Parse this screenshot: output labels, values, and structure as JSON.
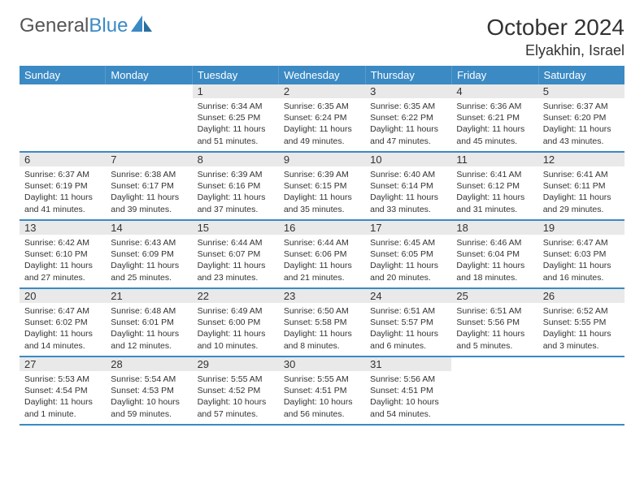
{
  "logo": {
    "text_gray": "General",
    "text_blue": "Blue"
  },
  "title": "October 2024",
  "location": "Elyakhin, Israel",
  "colors": {
    "header_bg": "#3b8ac4",
    "header_text": "#ffffff",
    "daynum_bg": "#e9e9e9",
    "week_border": "#3b8ac4",
    "text": "#333333",
    "background": "#ffffff"
  },
  "weekdays": [
    "Sunday",
    "Monday",
    "Tuesday",
    "Wednesday",
    "Thursday",
    "Friday",
    "Saturday"
  ],
  "weeks": [
    [
      {
        "n": "",
        "sunrise": "",
        "sunset": "",
        "daylight": ""
      },
      {
        "n": "",
        "sunrise": "",
        "sunset": "",
        "daylight": ""
      },
      {
        "n": "1",
        "sunrise": "Sunrise: 6:34 AM",
        "sunset": "Sunset: 6:25 PM",
        "daylight": "Daylight: 11 hours and 51 minutes."
      },
      {
        "n": "2",
        "sunrise": "Sunrise: 6:35 AM",
        "sunset": "Sunset: 6:24 PM",
        "daylight": "Daylight: 11 hours and 49 minutes."
      },
      {
        "n": "3",
        "sunrise": "Sunrise: 6:35 AM",
        "sunset": "Sunset: 6:22 PM",
        "daylight": "Daylight: 11 hours and 47 minutes."
      },
      {
        "n": "4",
        "sunrise": "Sunrise: 6:36 AM",
        "sunset": "Sunset: 6:21 PM",
        "daylight": "Daylight: 11 hours and 45 minutes."
      },
      {
        "n": "5",
        "sunrise": "Sunrise: 6:37 AM",
        "sunset": "Sunset: 6:20 PM",
        "daylight": "Daylight: 11 hours and 43 minutes."
      }
    ],
    [
      {
        "n": "6",
        "sunrise": "Sunrise: 6:37 AM",
        "sunset": "Sunset: 6:19 PM",
        "daylight": "Daylight: 11 hours and 41 minutes."
      },
      {
        "n": "7",
        "sunrise": "Sunrise: 6:38 AM",
        "sunset": "Sunset: 6:17 PM",
        "daylight": "Daylight: 11 hours and 39 minutes."
      },
      {
        "n": "8",
        "sunrise": "Sunrise: 6:39 AM",
        "sunset": "Sunset: 6:16 PM",
        "daylight": "Daylight: 11 hours and 37 minutes."
      },
      {
        "n": "9",
        "sunrise": "Sunrise: 6:39 AM",
        "sunset": "Sunset: 6:15 PM",
        "daylight": "Daylight: 11 hours and 35 minutes."
      },
      {
        "n": "10",
        "sunrise": "Sunrise: 6:40 AM",
        "sunset": "Sunset: 6:14 PM",
        "daylight": "Daylight: 11 hours and 33 minutes."
      },
      {
        "n": "11",
        "sunrise": "Sunrise: 6:41 AM",
        "sunset": "Sunset: 6:12 PM",
        "daylight": "Daylight: 11 hours and 31 minutes."
      },
      {
        "n": "12",
        "sunrise": "Sunrise: 6:41 AM",
        "sunset": "Sunset: 6:11 PM",
        "daylight": "Daylight: 11 hours and 29 minutes."
      }
    ],
    [
      {
        "n": "13",
        "sunrise": "Sunrise: 6:42 AM",
        "sunset": "Sunset: 6:10 PM",
        "daylight": "Daylight: 11 hours and 27 minutes."
      },
      {
        "n": "14",
        "sunrise": "Sunrise: 6:43 AM",
        "sunset": "Sunset: 6:09 PM",
        "daylight": "Daylight: 11 hours and 25 minutes."
      },
      {
        "n": "15",
        "sunrise": "Sunrise: 6:44 AM",
        "sunset": "Sunset: 6:07 PM",
        "daylight": "Daylight: 11 hours and 23 minutes."
      },
      {
        "n": "16",
        "sunrise": "Sunrise: 6:44 AM",
        "sunset": "Sunset: 6:06 PM",
        "daylight": "Daylight: 11 hours and 21 minutes."
      },
      {
        "n": "17",
        "sunrise": "Sunrise: 6:45 AM",
        "sunset": "Sunset: 6:05 PM",
        "daylight": "Daylight: 11 hours and 20 minutes."
      },
      {
        "n": "18",
        "sunrise": "Sunrise: 6:46 AM",
        "sunset": "Sunset: 6:04 PM",
        "daylight": "Daylight: 11 hours and 18 minutes."
      },
      {
        "n": "19",
        "sunrise": "Sunrise: 6:47 AM",
        "sunset": "Sunset: 6:03 PM",
        "daylight": "Daylight: 11 hours and 16 minutes."
      }
    ],
    [
      {
        "n": "20",
        "sunrise": "Sunrise: 6:47 AM",
        "sunset": "Sunset: 6:02 PM",
        "daylight": "Daylight: 11 hours and 14 minutes."
      },
      {
        "n": "21",
        "sunrise": "Sunrise: 6:48 AM",
        "sunset": "Sunset: 6:01 PM",
        "daylight": "Daylight: 11 hours and 12 minutes."
      },
      {
        "n": "22",
        "sunrise": "Sunrise: 6:49 AM",
        "sunset": "Sunset: 6:00 PM",
        "daylight": "Daylight: 11 hours and 10 minutes."
      },
      {
        "n": "23",
        "sunrise": "Sunrise: 6:50 AM",
        "sunset": "Sunset: 5:58 PM",
        "daylight": "Daylight: 11 hours and 8 minutes."
      },
      {
        "n": "24",
        "sunrise": "Sunrise: 6:51 AM",
        "sunset": "Sunset: 5:57 PM",
        "daylight": "Daylight: 11 hours and 6 minutes."
      },
      {
        "n": "25",
        "sunrise": "Sunrise: 6:51 AM",
        "sunset": "Sunset: 5:56 PM",
        "daylight": "Daylight: 11 hours and 5 minutes."
      },
      {
        "n": "26",
        "sunrise": "Sunrise: 6:52 AM",
        "sunset": "Sunset: 5:55 PM",
        "daylight": "Daylight: 11 hours and 3 minutes."
      }
    ],
    [
      {
        "n": "27",
        "sunrise": "Sunrise: 5:53 AM",
        "sunset": "Sunset: 4:54 PM",
        "daylight": "Daylight: 11 hours and 1 minute."
      },
      {
        "n": "28",
        "sunrise": "Sunrise: 5:54 AM",
        "sunset": "Sunset: 4:53 PM",
        "daylight": "Daylight: 10 hours and 59 minutes."
      },
      {
        "n": "29",
        "sunrise": "Sunrise: 5:55 AM",
        "sunset": "Sunset: 4:52 PM",
        "daylight": "Daylight: 10 hours and 57 minutes."
      },
      {
        "n": "30",
        "sunrise": "Sunrise: 5:55 AM",
        "sunset": "Sunset: 4:51 PM",
        "daylight": "Daylight: 10 hours and 56 minutes."
      },
      {
        "n": "31",
        "sunrise": "Sunrise: 5:56 AM",
        "sunset": "Sunset: 4:51 PM",
        "daylight": "Daylight: 10 hours and 54 minutes."
      },
      {
        "n": "",
        "sunrise": "",
        "sunset": "",
        "daylight": ""
      },
      {
        "n": "",
        "sunrise": "",
        "sunset": "",
        "daylight": ""
      }
    ]
  ]
}
